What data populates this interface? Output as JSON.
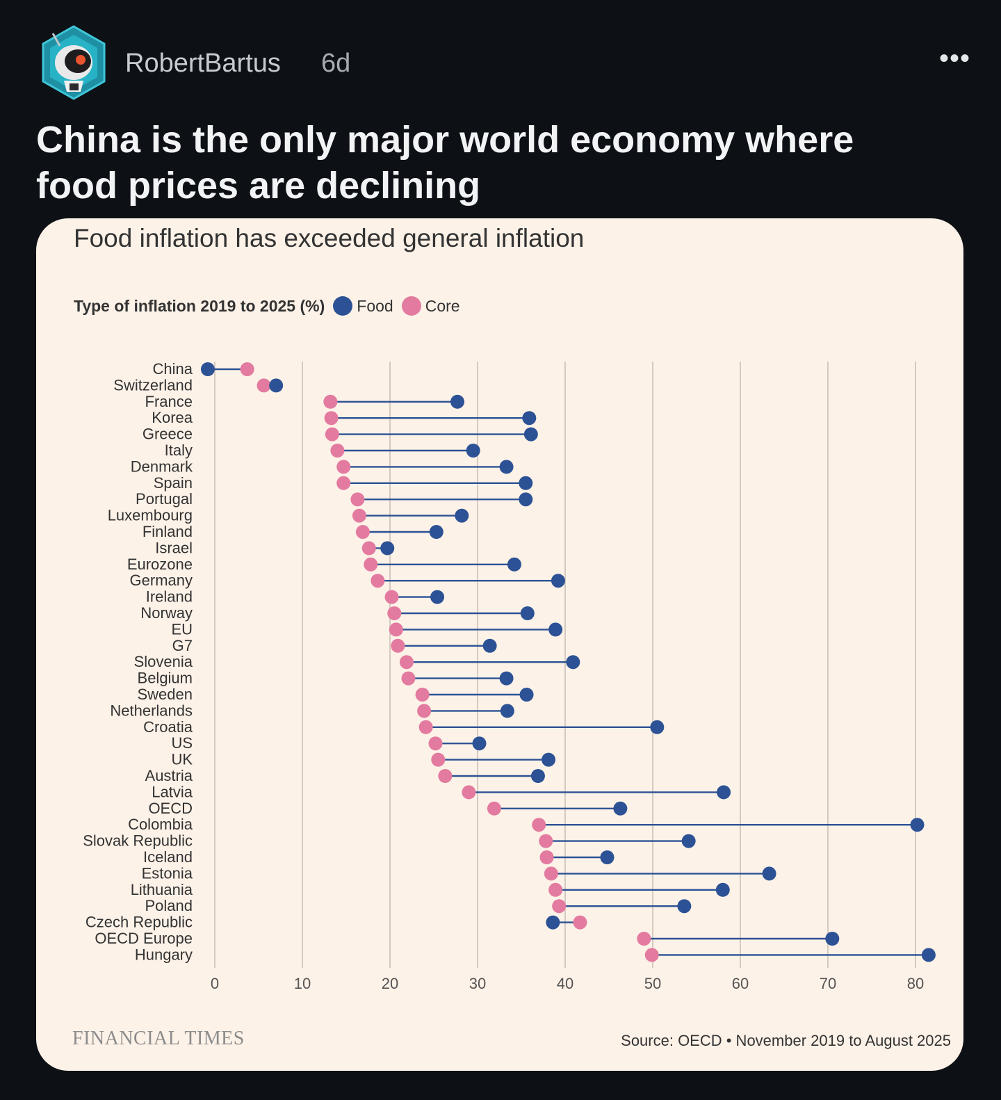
{
  "post": {
    "username": "RobertBartus",
    "age": "6d",
    "more_label": "•••",
    "title": "China is the only major world economy where food prices are declining"
  },
  "chart_data": {
    "type": "dumbbell",
    "title": "Food inflation has exceeded general inflation",
    "legend_title": "Type of inflation 2019 to 2025 (%)",
    "series": [
      {
        "name": "Food",
        "color": "#2c5295"
      },
      {
        "name": "Core",
        "color": "#e37a9f"
      }
    ],
    "xlim": [
      0,
      80
    ],
    "x_ticks": [
      0,
      10,
      20,
      30,
      40,
      50,
      60,
      70,
      80
    ],
    "grid": true,
    "countries": [
      "China",
      "Switzerland",
      "France",
      "Korea",
      "Greece",
      "Italy",
      "Denmark",
      "Spain",
      "Portugal",
      "Luxembourg",
      "Finland",
      "Israel",
      "Eurozone",
      "Germany",
      "Ireland",
      "Norway",
      "EU",
      "G7",
      "Slovenia",
      "Belgium",
      "Sweden",
      "Netherlands",
      "Croatia",
      "US",
      "UK",
      "Austria",
      "Latvia",
      "OECD",
      "Colombia",
      "Slovak Republic",
      "Iceland",
      "Estonia",
      "Lithuania",
      "Poland",
      "Czech Republic",
      "OECD Europe",
      "Hungary"
    ],
    "food": [
      -0.8,
      7.0,
      27.7,
      35.9,
      36.1,
      29.5,
      33.3,
      35.5,
      35.5,
      28.2,
      25.3,
      19.7,
      34.2,
      39.2,
      25.4,
      35.7,
      38.9,
      31.4,
      40.9,
      33.3,
      35.6,
      33.4,
      50.5,
      30.2,
      38.1,
      36.9,
      58.1,
      46.3,
      80.2,
      54.1,
      44.8,
      63.3,
      58.0,
      53.6,
      38.6,
      70.5,
      81.5
    ],
    "core": [
      3.7,
      5.6,
      13.2,
      13.3,
      13.4,
      14.0,
      14.7,
      14.7,
      16.3,
      16.5,
      16.9,
      17.6,
      17.8,
      18.6,
      20.2,
      20.5,
      20.7,
      20.9,
      21.9,
      22.1,
      23.7,
      23.9,
      24.1,
      25.2,
      25.5,
      26.3,
      29.0,
      31.9,
      37.0,
      37.8,
      37.9,
      38.4,
      38.9,
      39.3,
      41.7,
      49.0,
      49.9
    ],
    "brand": "FINANCIAL TIMES",
    "source": "Source: OECD • November 2019 to August 2025"
  }
}
